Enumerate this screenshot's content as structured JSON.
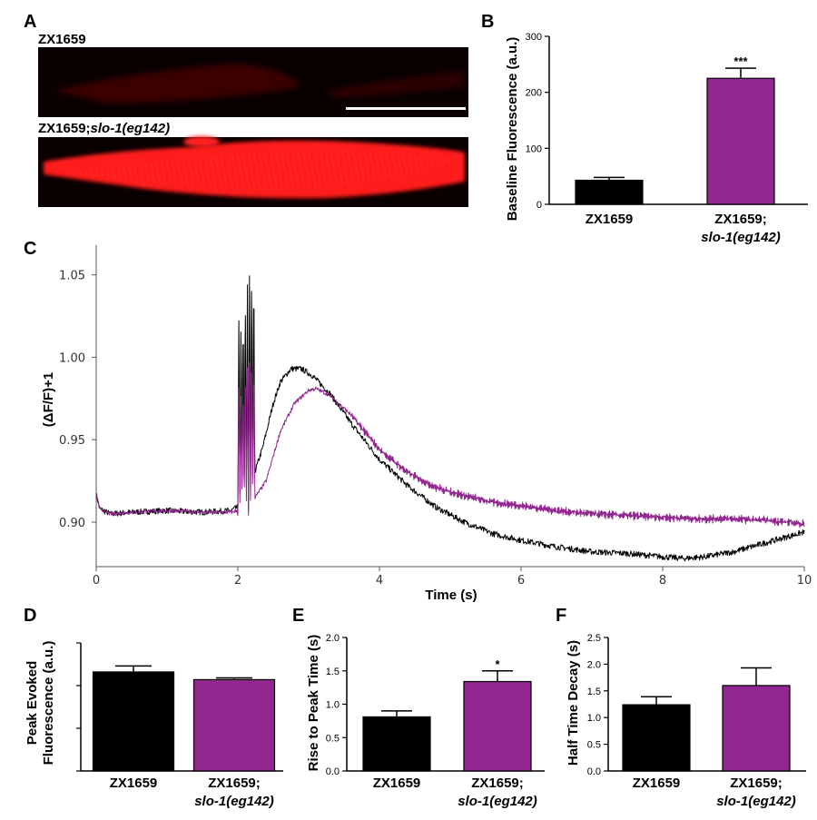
{
  "colors": {
    "black": "#000000",
    "purple": "#92278f",
    "image_bg": "#0a0000",
    "red": "#ff1a1a"
  },
  "panel_A": {
    "label": "A",
    "top_title": "ZX1659",
    "bottom_title_prefix": "ZX1659;",
    "bottom_title_italic": "slo-1(eg142)"
  },
  "panel_B": {
    "label": "B",
    "significance": "***",
    "cat2_line1": "ZX1659;",
    "cat2_line2": "slo-1(eg142)"
  },
  "panel_C": {
    "label": "C"
  },
  "panel_D": {
    "label": "D",
    "cat2_line1": "ZX1659;",
    "cat2_line2": "slo-1(eg142)"
  },
  "panel_E": {
    "label": "E",
    "significance": "*",
    "cat2_line1": "ZX1659;",
    "cat2_line2": "slo-1(eg142)"
  },
  "panel_F": {
    "label": "F",
    "cat2_line1": "ZX1659;",
    "cat2_line2": "slo-1(eg142)"
  },
  "chart_data": [
    {
      "id": "B",
      "type": "bar",
      "categories": [
        "ZX1659",
        "ZX1659; slo-1(eg142)"
      ],
      "values": [
        43,
        225
      ],
      "errors": [
        5,
        18
      ],
      "ylabel": "Baseline Fluorescence (a.u.)",
      "ylim": [
        0,
        300
      ],
      "yticks": [
        "0",
        "100",
        "200",
        "300"
      ],
      "significance": "***"
    },
    {
      "id": "C",
      "type": "line",
      "xlabel": "Time (s)",
      "ylabel": "(ΔF/F)+1",
      "xlim": [
        0,
        10
      ],
      "ylim": [
        0.873,
        1.068
      ],
      "xticks": [
        "0",
        "2",
        "4",
        "6",
        "8",
        "10"
      ],
      "yticks": [
        "0.90",
        "0.95",
        "1.00",
        "1.05"
      ],
      "series": [
        {
          "name": "ZX1659",
          "color": "#000000",
          "points": [
            [
              0,
              0.917
            ],
            [
              0.05,
              0.908
            ],
            [
              0.2,
              0.905
            ],
            [
              0.5,
              0.906
            ],
            [
              1.0,
              0.907
            ],
            [
              1.5,
              0.906
            ],
            [
              1.9,
              0.907
            ],
            [
              2.0,
              0.909
            ],
            [
              2.2,
              0.925
            ],
            [
              2.35,
              0.945
            ],
            [
              2.5,
              0.972
            ],
            [
              2.6,
              0.985
            ],
            [
              2.75,
              0.993
            ],
            [
              2.9,
              0.993
            ],
            [
              3.05,
              0.989
            ],
            [
              3.3,
              0.978
            ],
            [
              3.6,
              0.96
            ],
            [
              4.0,
              0.938
            ],
            [
              4.4,
              0.922
            ],
            [
              4.8,
              0.909
            ],
            [
              5.2,
              0.9
            ],
            [
              5.6,
              0.893
            ],
            [
              6.0,
              0.889
            ],
            [
              6.5,
              0.885
            ],
            [
              7.0,
              0.882
            ],
            [
              7.5,
              0.881
            ],
            [
              8.0,
              0.879
            ],
            [
              8.3,
              0.878
            ],
            [
              8.6,
              0.879
            ],
            [
              9.0,
              0.882
            ],
            [
              9.5,
              0.888
            ],
            [
              10.0,
              0.894
            ]
          ],
          "burst": {
            "start": 2.0,
            "end": 2.24,
            "cycles": 8,
            "low": 0.906,
            "peak_max": 1.068,
            "peak_min": 1.028
          }
        },
        {
          "name": "ZX1659; slo-1(eg142)",
          "color": "#92278f",
          "points": [
            [
              0,
              0.917
            ],
            [
              0.05,
              0.908
            ],
            [
              0.2,
              0.905
            ],
            [
              0.5,
              0.906
            ],
            [
              1.0,
              0.907
            ],
            [
              1.5,
              0.906
            ],
            [
              1.9,
              0.906
            ],
            [
              2.0,
              0.907
            ],
            [
              2.2,
              0.912
            ],
            [
              2.4,
              0.925
            ],
            [
              2.6,
              0.955
            ],
            [
              2.8,
              0.972
            ],
            [
              3.0,
              0.98
            ],
            [
              3.1,
              0.981
            ],
            [
              3.3,
              0.977
            ],
            [
              3.6,
              0.965
            ],
            [
              4.0,
              0.944
            ],
            [
              4.4,
              0.93
            ],
            [
              4.8,
              0.921
            ],
            [
              5.2,
              0.916
            ],
            [
              5.6,
              0.912
            ],
            [
              6.0,
              0.91
            ],
            [
              6.5,
              0.907
            ],
            [
              7.0,
              0.905
            ],
            [
              7.5,
              0.904
            ],
            [
              8.0,
              0.903
            ],
            [
              8.5,
              0.902
            ],
            [
              9.0,
              0.902
            ],
            [
              9.5,
              0.901
            ],
            [
              10.0,
              0.899
            ]
          ],
          "burst": {
            "start": 2.0,
            "end": 2.24,
            "cycles": 8,
            "low": 0.904,
            "peak_max": 1.008,
            "peak_min": 0.985
          }
        }
      ]
    },
    {
      "id": "D",
      "type": "bar",
      "categories": [
        "ZX1659",
        "ZX1659; slo-1(eg142)"
      ],
      "values": [
        1.16,
        1.07
      ],
      "errors": [
        0.07,
        0.02
      ],
      "ylabel": "Peak Evoked Fluorescence (a.u.)",
      "ylabel_lines": [
        "Peak Evoked",
        "Fluorescence (a.u.)"
      ],
      "ylim": [
        0,
        1.5
      ]
    },
    {
      "id": "E",
      "type": "bar",
      "categories": [
        "ZX1659",
        "ZX1659; slo-1(eg142)"
      ],
      "values": [
        0.81,
        1.34
      ],
      "errors": [
        0.09,
        0.16
      ],
      "ylabel": "Rise to Peak Time (s)",
      "ylim": [
        0,
        2.0
      ],
      "yticks": [
        "0.0",
        "0.5",
        "1.0",
        "1.5",
        "2.0"
      ],
      "significance": "*"
    },
    {
      "id": "F",
      "type": "bar",
      "categories": [
        "ZX1659",
        "ZX1659; slo-1(eg142)"
      ],
      "values": [
        1.24,
        1.6
      ],
      "errors": [
        0.15,
        0.33
      ],
      "ylabel": "Half Time Decay (s)",
      "ylim": [
        0,
        2.5
      ],
      "yticks": [
        "0.0",
        "0.5",
        "1.0",
        "1.5",
        "2.0",
        "2.5"
      ]
    }
  ]
}
